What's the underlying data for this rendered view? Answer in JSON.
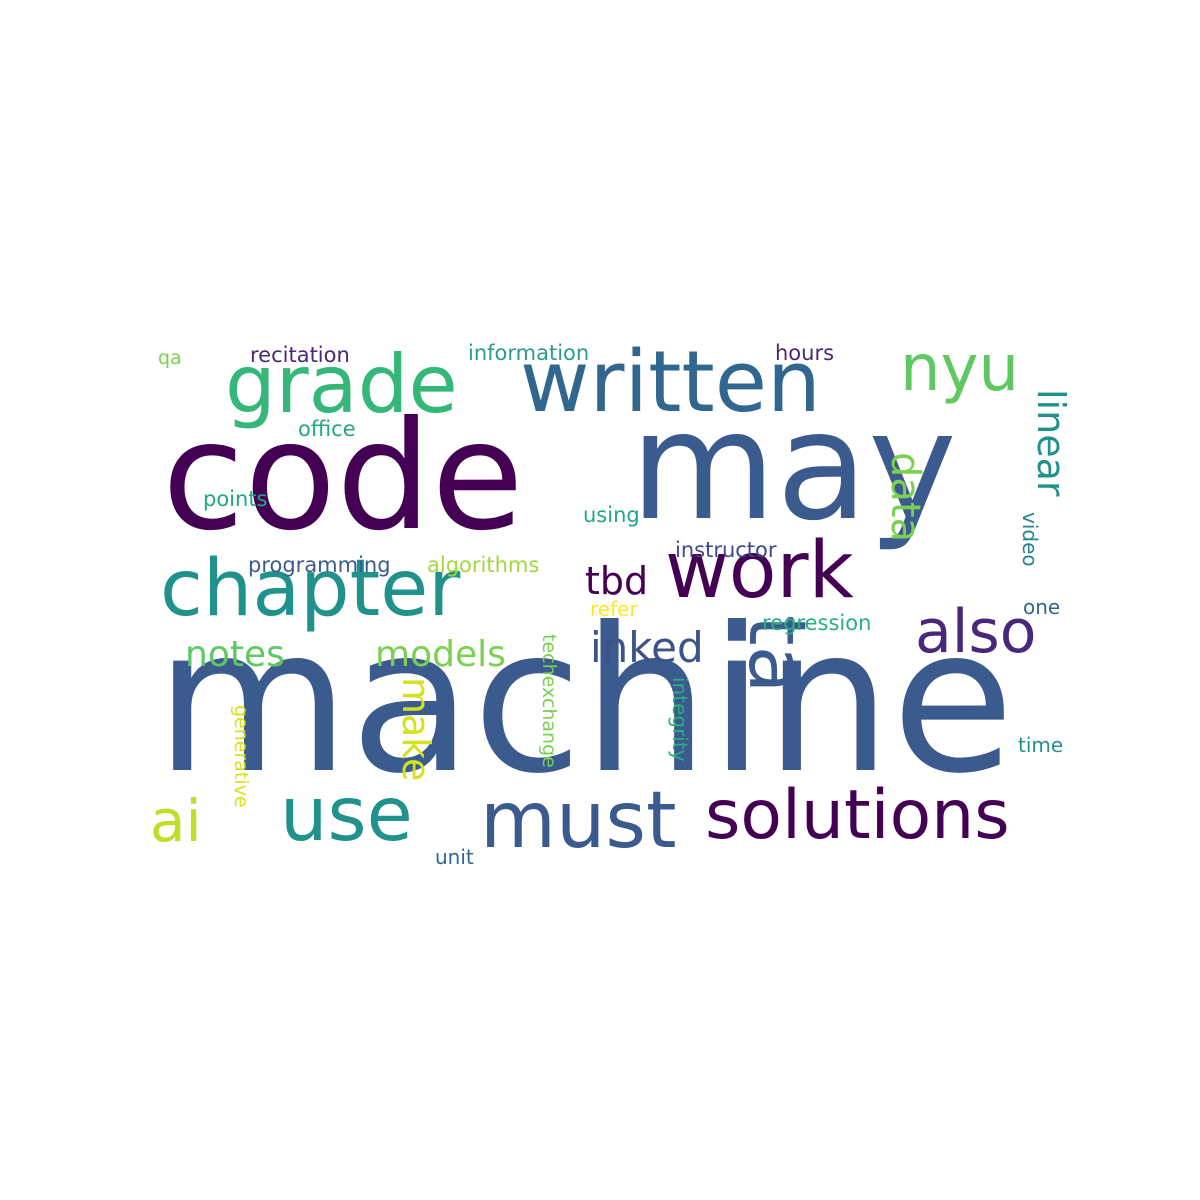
{
  "words": [
    {
      "text": "machine",
      "color": "#3b5b8f",
      "rot": 0
    },
    {
      "text": "code",
      "color": "#440154",
      "rot": 0
    },
    {
      "text": "may",
      "color": "#3b5b8f",
      "rot": 0
    },
    {
      "text": "written",
      "color": "#31668e",
      "rot": 0
    },
    {
      "text": "grade",
      "color": "#35b779",
      "rot": 0
    },
    {
      "text": "chapter",
      "color": "#21918c",
      "rot": 0
    },
    {
      "text": "work",
      "color": "#440154",
      "rot": 0
    },
    {
      "text": "ta",
      "color": "#3b5b8f",
      "rot": 90
    },
    {
      "text": "must",
      "color": "#3b5b8f",
      "rot": 0
    },
    {
      "text": "use",
      "color": "#21918c",
      "rot": 0
    },
    {
      "text": "solutions",
      "color": "#440154",
      "rot": 0
    },
    {
      "text": "nyu",
      "color": "#5ec962",
      "rot": 0
    },
    {
      "text": "also",
      "color": "#482878",
      "rot": 0
    },
    {
      "text": "linear",
      "color": "#21918c",
      "rot": 90
    },
    {
      "text": "data",
      "color": "#7ad151",
      "rot": 90
    },
    {
      "text": "inked",
      "color": "#3b528b",
      "rot": 0
    },
    {
      "text": "ai",
      "color": "#bddf26",
      "rot": 0
    },
    {
      "text": "tbd",
      "color": "#440154",
      "rot": 0
    },
    {
      "text": "models",
      "color": "#7ad151",
      "rot": 0
    },
    {
      "text": "notes",
      "color": "#5ec962",
      "rot": 0
    },
    {
      "text": "make",
      "color": "#d2e21b",
      "rot": 90
    },
    {
      "text": "recitation",
      "color": "#482878",
      "rot": 0
    },
    {
      "text": "information",
      "color": "#2a9d8f",
      "rot": 0
    },
    {
      "text": "hours",
      "color": "#482878",
      "rot": 0
    },
    {
      "text": "qa",
      "color": "#7ad151",
      "rot": 0
    },
    {
      "text": "office",
      "color": "#22a884",
      "rot": 0
    },
    {
      "text": "points",
      "color": "#22a884",
      "rot": 0
    },
    {
      "text": "using",
      "color": "#22a884",
      "rot": 0
    },
    {
      "text": "instructor",
      "color": "#3e4989",
      "rot": 0
    },
    {
      "text": "programming",
      "color": "#3b5b8f",
      "rot": 0
    },
    {
      "text": "algorithms",
      "color": "#a0da39",
      "rot": 0
    },
    {
      "text": "video",
      "color": "#26828e",
      "rot": 90
    },
    {
      "text": "refer",
      "color": "#fde725",
      "rot": 0
    },
    {
      "text": "regression",
      "color": "#2ab07f",
      "rot": 0
    },
    {
      "text": "one",
      "color": "#31668e",
      "rot": 0
    },
    {
      "text": "integrity",
      "color": "#2ab07f",
      "rot": 90
    },
    {
      "text": "techexchange",
      "color": "#7ad151",
      "rot": 90
    },
    {
      "text": "generative",
      "color": "#d8e219",
      "rot": 90
    },
    {
      "text": "time",
      "color": "#21918c",
      "rot": 0
    },
    {
      "text": "unit",
      "color": "#31668e",
      "rot": 0
    }
  ]
}
